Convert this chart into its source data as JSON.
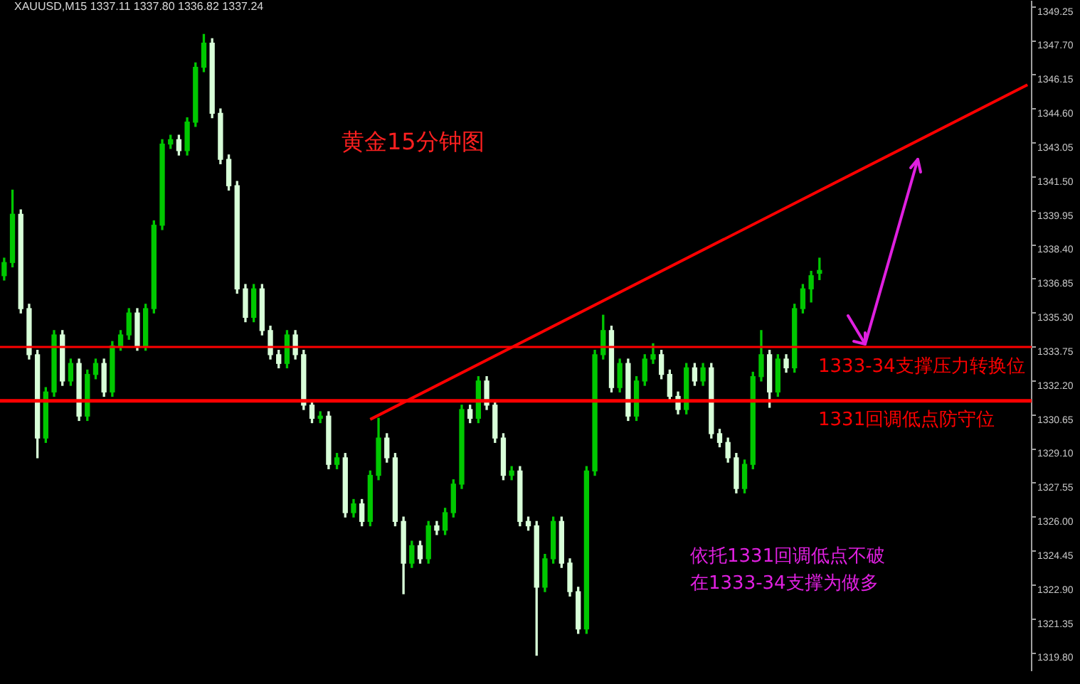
{
  "chart_data": {
    "type": "candlestick",
    "title": "黄金15分钟图",
    "subtitle": "XAUUSD,M15  1337.11 1337.80 1336.82 1337.24",
    "colors": [
      "#00c800",
      "#00c800",
      "#d8ffd8",
      "#d8ffd8",
      "#d8ffd8",
      "#00c800",
      "#00c800",
      "#d8ffd8",
      "#00c800",
      "#d8ffd8",
      "#00c800",
      "#00c800",
      "#d8ffd8",
      "#00c800",
      "#00c800",
      "#00c800",
      "#d8ffd8",
      "#00c800",
      "#00c800",
      "#00c800",
      "#00c800",
      "#d8ffd8",
      "#00c800",
      "#00c800",
      "#00c800",
      "#d8ffd8",
      "#d8ffd8",
      "#d8ffd8",
      "#d8ffd8",
      "#d8ffd8",
      "#00c800",
      "#d8ffd8",
      "#d8ffd8",
      "#d8ffd8",
      "#00c800",
      "#d8ffd8",
      "#d8ffd8",
      "#d8ffd8",
      "#00c800",
      "#d8ffd8",
      "#00c800",
      "#d8ffd8",
      "#00c800",
      "#d8ffd8",
      "#00c800",
      "#00c800",
      "#d8ffd8",
      "#d8ffd8",
      "#d8ffd8",
      "#00c800",
      "#d8ffd8",
      "#00c800",
      "#d8ffd8",
      "#00c800",
      "#00c800",
      "#00c800",
      "#d8ffd8",
      "#00c800",
      "#d8ffd8",
      "#d8ffd8",
      "#d8ffd8",
      "#00c800",
      "#d8ffd8",
      "#d8ffd8",
      "#d8ffd8",
      "#00c800",
      "#00c800",
      "#d8ffd8",
      "#d8ffd8",
      "#d8ffd8",
      "#00c800",
      "#00c800",
      "#00c800",
      "#d8ffd8",
      "#00c800",
      "#d8ffd8",
      "#00c800",
      "#00c800",
      "#00c800",
      "#d8ffd8",
      "#d8ffd8",
      "#d8ffd8",
      "#00c800",
      "#d8ffd8",
      "#00c800",
      "#d8ffd8",
      "#d8ffd8",
      "#d8ffd8",
      "#d8ffd8",
      "#00c800",
      "#00c800",
      "#00c800",
      "#d8ffd8",
      "#00c800",
      "#d8ffd8",
      "#00c800",
      "#00c800",
      "#00c800",
      "#00c800",
      null,
      null,
      null,
      null,
      null,
      null,
      null,
      null,
      null,
      null,
      null,
      null,
      null,
      null,
      null,
      null,
      null,
      null,
      null,
      null,
      null,
      null,
      null,
      null,
      null
    ],
    "categories": [
      null,
      null,
      null,
      null,
      null,
      null,
      null,
      null,
      null,
      null,
      null,
      null,
      null,
      null,
      null,
      null,
      null,
      null,
      null,
      null,
      null,
      null,
      null,
      null,
      null,
      null,
      null,
      null,
      null,
      null,
      null,
      null,
      null,
      null,
      null,
      null,
      null,
      null,
      null,
      null,
      null,
      null,
      null,
      null,
      null,
      null,
      null,
      null,
      null,
      null,
      null,
      null,
      null,
      null,
      null,
      null,
      null,
      null,
      null,
      null,
      null,
      null,
      null,
      null,
      null,
      null,
      null,
      null,
      null,
      null,
      null,
      null,
      null,
      null,
      null,
      null,
      null,
      null,
      null,
      null,
      null,
      null,
      null,
      null,
      null,
      null,
      null,
      null,
      null,
      null,
      null,
      null,
      null,
      null,
      null,
      null,
      null,
      null,
      null,
      null,
      null,
      null,
      null,
      null,
      null,
      null,
      null,
      null,
      null,
      null,
      null,
      null,
      null,
      null,
      null,
      null,
      null,
      null,
      null,
      null,
      null,
      null,
      null,
      null
    ],
    "tick_labels": "y",
    "ylim": [
      1319.0,
      1349.5
    ],
    "yticks": [
      1349.25,
      {
        "value": 1347.7,
        "label": "1347.70"
      },
      1346.15,
      {
        "value": 1344.6,
        "label": "1344.60"
      },
      1343.05,
      {
        "value": 1341.5,
        "label": "1341.50"
      },
      1339.95,
      {
        "value": 1338.4,
        "label": "1338.40"
      },
      1336.85,
      {
        "value": 1335.3,
        "label": "1335.30"
      },
      1333.75,
      {
        "value": 1332.2,
        "label": "1332.20"
      },
      1330.65,
      {
        "value": 1329.1,
        "label": "1329.10"
      },
      1327.55,
      {
        "value": 1326,
        "label": "1326.00"
      },
      1324.45,
      {
        "value": 1322.9,
        "label": "1322.90"
      },
      1321.35,
      {
        "value": 1319.8,
        "label": "1319.80"
      }
    ],
    "ohlc": [
      [
        1337.0,
        1337.8,
        1336.8,
        1337.6
      ],
      [
        1337.6,
        1340.9,
        1337.4,
        1339.8
      ],
      [
        1339.8,
        1340.0,
        1335.3,
        1335.5
      ],
      [
        1335.5,
        1335.7,
        1333.2,
        1333.4
      ],
      [
        1333.4,
        1333.6,
        1328.7,
        1329.6
      ],
      [
        1329.6,
        1331.9,
        1329.4,
        1331.7
      ],
      [
        1331.7,
        1334.5,
        1331.5,
        1334.3
      ],
      [
        1334.3,
        1334.5,
        1332.0,
        1332.2
      ],
      [
        1332.2,
        1333.2,
        1332.0,
        1333.0
      ],
      [
        1333.0,
        1333.2,
        1330.4,
        1330.6
      ],
      [
        1330.6,
        1332.7,
        1330.4,
        1332.5
      ],
      [
        1332.5,
        1333.2,
        1332.3,
        1333.0
      ],
      [
        1333.0,
        1333.2,
        1331.5,
        1331.7
      ],
      [
        1331.7,
        1334.0,
        1331.5,
        1333.8
      ],
      [
        1333.8,
        1334.5,
        1333.6,
        1334.3
      ],
      [
        1334.3,
        1335.5,
        1334.1,
        1335.3
      ],
      [
        1335.3,
        1335.5,
        1333.6,
        1333.8
      ],
      [
        1333.8,
        1335.7,
        1333.6,
        1335.5
      ],
      [
        1335.5,
        1339.5,
        1335.3,
        1339.3
      ],
      [
        1339.3,
        1343.2,
        1339.1,
        1343.0
      ],
      [
        1343.0,
        1343.4,
        1342.8,
        1343.2
      ],
      [
        1343.2,
        1343.4,
        1342.5,
        1342.7
      ],
      [
        1342.7,
        1344.2,
        1342.5,
        1344.0
      ],
      [
        1344.0,
        1346.7,
        1343.8,
        1346.5
      ],
      [
        1346.5,
        1348.0,
        1346.3,
        1347.6
      ],
      [
        1347.6,
        1347.8,
        1344.2,
        1344.4
      ],
      [
        1344.4,
        1344.6,
        1342.1,
        1342.3
      ],
      [
        1342.3,
        1342.5,
        1340.9,
        1341.1
      ],
      [
        1341.1,
        1341.3,
        1336.2,
        1336.4
      ],
      [
        1336.4,
        1336.6,
        1334.9,
        1335.1
      ],
      [
        1335.1,
        1336.6,
        1334.9,
        1336.4
      ],
      [
        1336.4,
        1336.6,
        1334.3,
        1334.5
      ],
      [
        1334.5,
        1334.7,
        1333.2,
        1333.4
      ],
      [
        1333.4,
        1333.6,
        1332.8,
        1333.0
      ],
      [
        1333.0,
        1334.5,
        1332.8,
        1334.3
      ],
      [
        1334.3,
        1334.5,
        1333.2,
        1333.4
      ],
      [
        1333.4,
        1333.6,
        1330.9,
        1331.1
      ],
      [
        1331.1,
        1331.3,
        1330.3,
        1330.5
      ],
      [
        1330.5,
        1330.8,
        1330.3,
        1330.6
      ],
      [
        1330.6,
        1330.8,
        1328.2,
        1328.4
      ],
      [
        1328.4,
        1328.9,
        1328.2,
        1328.7
      ],
      [
        1328.7,
        1328.9,
        1326.0,
        1326.2
      ],
      [
        1326.2,
        1326.8,
        1326.0,
        1326.6
      ],
      [
        1326.6,
        1326.8,
        1325.6,
        1325.8
      ],
      [
        1325.8,
        1328.1,
        1325.6,
        1327.9
      ],
      [
        1327.9,
        1330.5,
        1327.7,
        1329.6
      ],
      [
        1329.6,
        1329.8,
        1328.5,
        1328.7
      ],
      [
        1328.7,
        1328.9,
        1325.6,
        1325.8
      ],
      [
        1325.8,
        1326.0,
        1322.5,
        1323.9
      ],
      [
        1323.9,
        1324.9,
        1323.7,
        1324.7
      ],
      [
        1324.7,
        1324.9,
        1323.9,
        1324.1
      ],
      [
        1324.1,
        1325.8,
        1323.9,
        1325.6
      ],
      [
        1325.6,
        1325.8,
        1325.2,
        1325.4
      ],
      [
        1325.4,
        1326.4,
        1325.2,
        1326.2
      ],
      [
        1326.2,
        1327.7,
        1326.0,
        1327.5
      ],
      [
        1327.5,
        1331.1,
        1327.3,
        1330.9
      ],
      [
        1330.9,
        1331.1,
        1330.3,
        1330.5
      ],
      [
        1330.5,
        1332.4,
        1330.3,
        1332.2
      ],
      [
        1332.2,
        1332.4,
        1330.9,
        1331.1
      ],
      [
        1331.1,
        1331.3,
        1329.4,
        1329.6
      ],
      [
        1329.6,
        1329.8,
        1327.7,
        1327.9
      ],
      [
        1327.9,
        1328.3,
        1327.7,
        1328.1
      ],
      [
        1328.1,
        1328.3,
        1325.6,
        1325.8
      ],
      [
        1325.8,
        1326.0,
        1325.4,
        1325.6
      ],
      [
        1325.6,
        1325.8,
        1319.7,
        1322.8
      ],
      [
        1322.8,
        1324.3,
        1322.6,
        1324.1
      ],
      [
        1324.1,
        1326.0,
        1323.9,
        1325.8
      ],
      [
        1325.8,
        1326.0,
        1323.7,
        1323.9
      ],
      [
        1323.9,
        1324.1,
        1322.4,
        1322.6
      ],
      [
        1322.6,
        1322.8,
        1320.7,
        1320.9
      ],
      [
        1320.9,
        1328.3,
        1320.7,
        1328.1
      ],
      [
        1328.1,
        1333.6,
        1327.9,
        1333.4
      ],
      [
        1333.4,
        1335.2,
        1333.2,
        1334.5
      ],
      [
        1334.5,
        1334.7,
        1331.7,
        1331.9
      ],
      [
        1331.9,
        1333.2,
        1331.7,
        1333.0
      ],
      [
        1333.0,
        1333.2,
        1330.4,
        1330.6
      ],
      [
        1330.6,
        1332.4,
        1330.4,
        1332.2
      ],
      [
        1332.2,
        1333.4,
        1332.0,
        1333.2
      ],
      [
        1333.2,
        1333.9,
        1333.0,
        1333.4
      ],
      [
        1333.4,
        1333.6,
        1332.3,
        1332.5
      ],
      [
        1332.5,
        1332.7,
        1331.3,
        1331.5
      ],
      [
        1331.5,
        1331.7,
        1330.7,
        1330.9
      ],
      [
        1330.9,
        1333.0,
        1330.7,
        1332.8
      ],
      [
        1332.8,
        1333.0,
        1332.0,
        1332.2
      ],
      [
        1332.2,
        1333.0,
        1332.0,
        1332.8
      ],
      [
        1332.8,
        1333.0,
        1329.6,
        1329.8
      ],
      [
        1329.8,
        1330.0,
        1329.2,
        1329.4
      ],
      [
        1329.4,
        1329.6,
        1328.5,
        1328.7
      ],
      [
        1328.7,
        1328.9,
        1327.1,
        1327.3
      ],
      [
        1327.3,
        1328.6,
        1327.1,
        1328.4
      ],
      [
        1328.4,
        1332.6,
        1328.2,
        1332.4
      ],
      [
        1332.4,
        1334.5,
        1332.2,
        1333.4
      ],
      [
        1333.4,
        1333.6,
        1331.0,
        1331.7
      ],
      [
        1331.7,
        1333.4,
        1331.5,
        1333.2
      ],
      [
        1333.2,
        1333.4,
        1332.6,
        1332.8
      ],
      [
        1332.8,
        1335.7,
        1332.6,
        1335.5
      ],
      [
        1335.5,
        1336.6,
        1335.3,
        1336.4
      ],
      [
        1336.4,
        1337.2,
        1335.8,
        1337.0
      ],
      [
        1337.11,
        1337.8,
        1336.82,
        1337.24
      ],
      null,
      null,
      null,
      null,
      null,
      null,
      null,
      null,
      null,
      null,
      null,
      null,
      null,
      null,
      null,
      null,
      null,
      null,
      null,
      null,
      null,
      null,
      null,
      null,
      null
    ],
    "series": [
      {
        "type": "line",
        "values": [
          null,
          null,
          null,
          null,
          null,
          null,
          null,
          null,
          null,
          null,
          null,
          null,
          null,
          null,
          null,
          null,
          null,
          null,
          null,
          null,
          null,
          null,
          null,
          null,
          null,
          null,
          null,
          null,
          null,
          null,
          null,
          null,
          null,
          null,
          null,
          null,
          null,
          null,
          null,
          null,
          null,
          null,
          null,
          null,
          1330.45,
          null,
          null,
          null,
          null,
          null,
          null,
          null,
          null,
          null,
          null,
          null,
          null,
          null,
          null,
          null,
          null,
          null,
          null,
          null,
          null,
          null,
          null,
          null,
          null,
          null,
          null,
          null,
          null,
          null,
          null,
          null,
          null,
          null,
          null,
          null,
          null,
          null,
          null,
          null,
          null,
          null,
          null,
          null,
          null,
          null,
          null,
          null,
          null,
          null,
          null,
          null,
          null,
          null,
          null,
          null,
          null,
          null,
          null,
          null,
          null,
          null,
          null,
          null,
          null,
          null,
          null,
          null,
          null,
          null,
          null,
          null,
          null,
          null,
          null,
          null,
          null,
          null,
          null,
          1345.7
        ],
        "color": "#ff0000"
      }
    ],
    "ref_lines": [
      {
        "axis": "y",
        "value": 1333.75,
        "label": "1333-34支撑压力转换位",
        "color": "#ff0000"
      },
      {
        "axis": "y",
        "value": 1331.3,
        "label": "1331回调低点防守位",
        "color": "#ff0000"
      }
    ],
    "annotations": [
      "依托1331回调低点不破",
      "在1333-34支撑为做多"
    ]
  }
}
